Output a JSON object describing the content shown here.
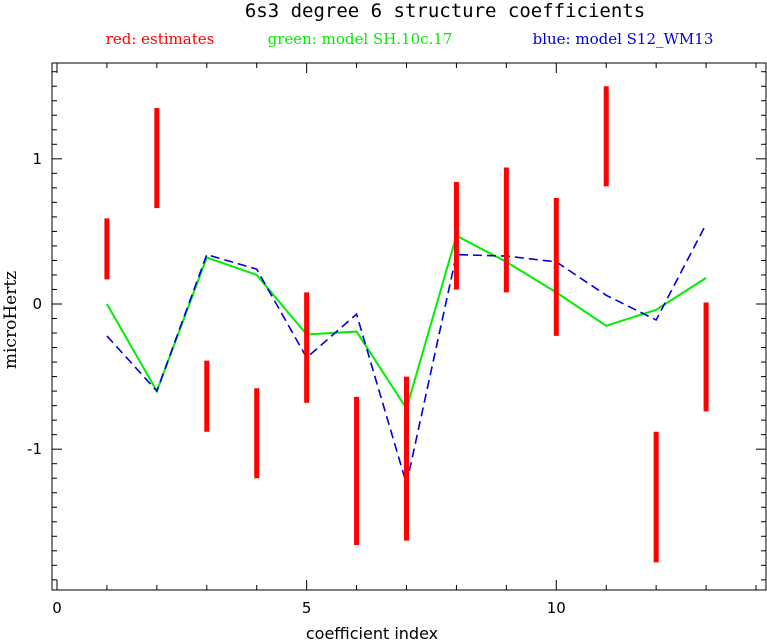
{
  "chart_data": {
    "type": "line",
    "title": "6s3 degree 6 structure coefficients",
    "xlabel": "coefficient index",
    "ylabel": "microHertz",
    "xlim": [
      -0.1,
      14.2
    ],
    "ylim": [
      -1.97,
      1.66
    ],
    "xticks": [
      0,
      5,
      10
    ],
    "yticks": [
      -1,
      0,
      1
    ],
    "grid": false,
    "legend_position": "top",
    "colors": {
      "estimates": "#ff0000",
      "sh": "#00ee00",
      "s12": "#0000dd"
    },
    "legend": [
      {
        "key": "estimates",
        "label": "red: estimates"
      },
      {
        "key": "sh",
        "label": "green: model SH.10c.17"
      },
      {
        "key": "s12",
        "label": "blue: model S12_WM13"
      }
    ],
    "estimates": [
      {
        "x": 1,
        "low": 0.17,
        "high": 0.59
      },
      {
        "x": 2,
        "low": 0.66,
        "high": 1.35
      },
      {
        "x": 3,
        "low": -0.88,
        "high": -0.39
      },
      {
        "x": 4,
        "low": -1.2,
        "high": -0.58
      },
      {
        "x": 5,
        "low": -0.68,
        "high": 0.08
      },
      {
        "x": 6,
        "low": -1.66,
        "high": -0.64
      },
      {
        "x": 7,
        "low": -1.63,
        "high": -0.5
      },
      {
        "x": 8,
        "low": 0.1,
        "high": 0.84
      },
      {
        "x": 9,
        "low": 0.08,
        "high": 0.94
      },
      {
        "x": 10,
        "low": -0.22,
        "high": 0.73
      },
      {
        "x": 11,
        "low": 0.81,
        "high": 1.5
      },
      {
        "x": 12,
        "low": -1.78,
        "high": -0.88
      },
      {
        "x": 13,
        "low": -0.74,
        "high": 0.01
      }
    ],
    "series": [
      {
        "key": "sh",
        "name": "model SH.10c.17",
        "style": "solid",
        "x": [
          1,
          2,
          3,
          4,
          5,
          6,
          7,
          8,
          9,
          10,
          11,
          12,
          13
        ],
        "values": [
          0.0,
          -0.6,
          0.32,
          0.2,
          -0.21,
          -0.19,
          -0.72,
          0.47,
          0.29,
          0.08,
          -0.15,
          -0.04,
          0.18
        ]
      },
      {
        "key": "s12",
        "name": "model S12_WM13",
        "style": "dashed",
        "x": [
          1,
          2,
          3,
          4,
          5,
          6,
          7,
          8,
          9,
          10,
          11,
          12,
          13
        ],
        "values": [
          -0.22,
          -0.6,
          0.34,
          0.24,
          -0.37,
          -0.07,
          -1.24,
          0.34,
          0.33,
          0.29,
          0.06,
          -0.11,
          0.55
        ]
      }
    ]
  }
}
